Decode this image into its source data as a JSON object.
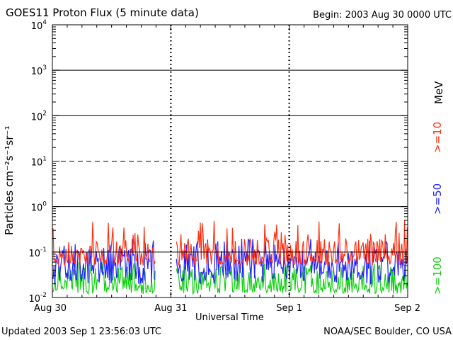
{
  "header": {
    "title": "GOES11 Proton Flux (5 minute data)",
    "begin": "Begin: 2003 Aug 30 0000 UTC"
  },
  "footer": {
    "updated": "Updated 2003 Sep  1 23:56:03 UTC",
    "credit": "NOAA/SEC Boulder, CO USA"
  },
  "colors": {
    "ge10": "#ff3010",
    "ge50": "#2020ff",
    "ge100": "#10d010"
  },
  "chart_data": {
    "type": "line",
    "xlabel": "Universal Time",
    "ylabel": "Particles cm⁻²s⁻¹sr⁻¹",
    "yscale": "log",
    "ylim": [
      0.01,
      10000
    ],
    "ytick_values": [
      0.01,
      0.1,
      1,
      10,
      100,
      1000,
      10000
    ],
    "ytick_labels": [
      {
        "base": "10",
        "exp": "-2"
      },
      {
        "base": "10",
        "exp": "-1"
      },
      {
        "base": "10",
        "exp": "0"
      },
      {
        "base": "10",
        "exp": "1"
      },
      {
        "base": "10",
        "exp": "2"
      },
      {
        "base": "10",
        "exp": "3"
      },
      {
        "base": "10",
        "exp": "4"
      }
    ],
    "xlim": [
      "2003-08-30",
      "2003-09-02"
    ],
    "x_ticks": [
      "2003-08-30",
      "2003-08-31",
      "2003-09-01",
      "2003-09-02"
    ],
    "x_tick_labels": [
      "Aug 30",
      "Aug 31",
      "Sep 1",
      "Sep 2"
    ],
    "threshold_lines": [
      {
        "y": 10,
        "style": "dashed"
      },
      {
        "y": 0.1,
        "style": "solid"
      }
    ],
    "data_gap": [
      "2003-08-30T21:00",
      "2003-08-31T01:00"
    ],
    "series": [
      {
        "name": ">=10",
        "label": ">=10",
        "unit": "MeV",
        "color": "#ff3010",
        "typical": 0.1,
        "min": 0.05,
        "max": 0.5
      },
      {
        "name": ">=50",
        "label": ">=50",
        "color": "#2020ff",
        "typical": 0.06,
        "min": 0.02,
        "max": 0.2
      },
      {
        "name": ">=100",
        "label": ">=100",
        "color": "#10d010",
        "typical": 0.025,
        "min": 0.012,
        "max": 0.06
      }
    ]
  }
}
